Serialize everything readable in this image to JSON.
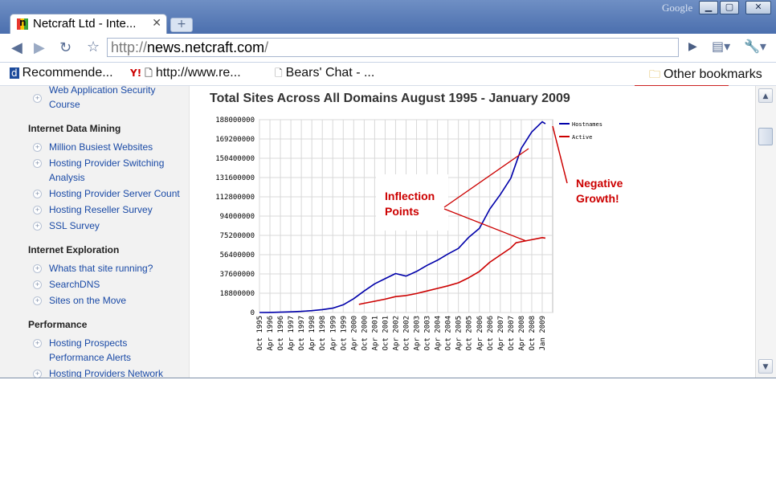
{
  "browser": {
    "brand": "Google",
    "tab_title": "Netcraft Ltd - Inte...",
    "url_scheme": "http://",
    "url_host": "news.netcraft.com",
    "url_path": "/"
  },
  "bookmarks": {
    "items": [
      {
        "label": "Recommende..."
      },
      {
        "label": "http://www.re..."
      },
      {
        "label": "Bears' Chat - ..."
      }
    ],
    "other": "Other bookmarks"
  },
  "sidebar": {
    "top_link": [
      "Web Application Security",
      "Course"
    ],
    "sections": [
      {
        "title": "Internet Data Mining"
      },
      {
        "title": "Internet Exploration"
      },
      {
        "title": "Performance"
      }
    ],
    "links": {
      "mining": [
        [
          "Million Busiest Websites"
        ],
        [
          "Hosting Provider Switching",
          "Analysis"
        ],
        [
          "Hosting Provider Server Count"
        ],
        [
          "Hosting Reseller Survey"
        ],
        [
          "SSL Survey"
        ]
      ],
      "exploration": [
        [
          "Whats that site running?"
        ],
        [
          "SearchDNS"
        ],
        [
          "Sites on the Move"
        ]
      ],
      "performance": [
        [
          "Hosting Prospects"
        ],
        [
          "Performance Alerts"
        ],
        [
          "Hosting Providers Network"
        ]
      ]
    }
  },
  "chart_data": {
    "type": "line",
    "title": "Total Sites Across All Domains August 1995 - January 2009",
    "ylim": [
      0,
      188000000
    ],
    "yticks": [
      0,
      18800000,
      37600000,
      56400000,
      75200000,
      94000000,
      112800000,
      131600000,
      150400000,
      169200000,
      188000000
    ],
    "xticks": [
      "Oct 1995",
      "Apr 1996",
      "Oct 1996",
      "Apr 1997",
      "Oct 1997",
      "Apr 1998",
      "Oct 1998",
      "Apr 1999",
      "Oct 1999",
      "Apr 2000",
      "Oct 2000",
      "Apr 2001",
      "Oct 2001",
      "Apr 2002",
      "Oct 2002",
      "Apr 2003",
      "Oct 2003",
      "Apr 2004",
      "Oct 2004",
      "Apr 2005",
      "Oct 2005",
      "Apr 2006",
      "Oct 2006",
      "Apr 2007",
      "Oct 2007",
      "Apr 2008",
      "Oct 2008",
      "Jan 2009"
    ],
    "legend": "top-right",
    "grid": true,
    "series": [
      {
        "name": "Hostnames",
        "color": "#0000aa",
        "points": [
          [
            0,
            18000
          ],
          [
            1,
            100000
          ],
          [
            2,
            350000
          ],
          [
            3,
            650000
          ],
          [
            4,
            1100000
          ],
          [
            5,
            1800000
          ],
          [
            6,
            2800000
          ],
          [
            7,
            4200000
          ],
          [
            8,
            7500000
          ],
          [
            9,
            13500000
          ],
          [
            10,
            21000000
          ],
          [
            11,
            28000000
          ],
          [
            12,
            33000000
          ],
          [
            13,
            38000000
          ],
          [
            14,
            35500000
          ],
          [
            15,
            40000000
          ],
          [
            16,
            46000000
          ],
          [
            17,
            51000000
          ],
          [
            18,
            57000000
          ],
          [
            19,
            62500000
          ],
          [
            20,
            73500000
          ],
          [
            21,
            82000000
          ],
          [
            22,
            101000000
          ],
          [
            23,
            115000000
          ],
          [
            24,
            131000000
          ],
          [
            25,
            160000000
          ],
          [
            26,
            176000000
          ],
          [
            27,
            186000000
          ],
          [
            27.3,
            184000000
          ]
        ]
      },
      {
        "name": "Active",
        "color": "#cc0000",
        "points": [
          [
            9.5,
            7900000
          ],
          [
            10,
            9000000
          ],
          [
            11,
            11000000
          ],
          [
            12,
            13000000
          ],
          [
            13,
            15500000
          ],
          [
            14,
            16500000
          ],
          [
            15,
            18500000
          ],
          [
            16,
            21000000
          ],
          [
            17,
            23500000
          ],
          [
            18,
            26000000
          ],
          [
            19,
            29000000
          ],
          [
            20,
            34000000
          ],
          [
            21,
            40000000
          ],
          [
            22,
            49000000
          ],
          [
            23,
            56000000
          ],
          [
            24,
            63000000
          ],
          [
            24.5,
            68000000
          ],
          [
            25,
            69000000
          ],
          [
            26,
            71000000
          ],
          [
            27,
            73000000
          ],
          [
            27.3,
            72500000
          ]
        ]
      }
    ],
    "annotations": [
      {
        "text": [
          "Inflection",
          "Points"
        ],
        "color": "#cc0000"
      },
      {
        "text": [
          "Negative",
          "Growth!"
        ],
        "color": "#cc0000"
      }
    ]
  },
  "colors": {
    "grid": "#d8d8d8",
    "annotation": "#cc0000",
    "link": "#1a4aa6"
  }
}
